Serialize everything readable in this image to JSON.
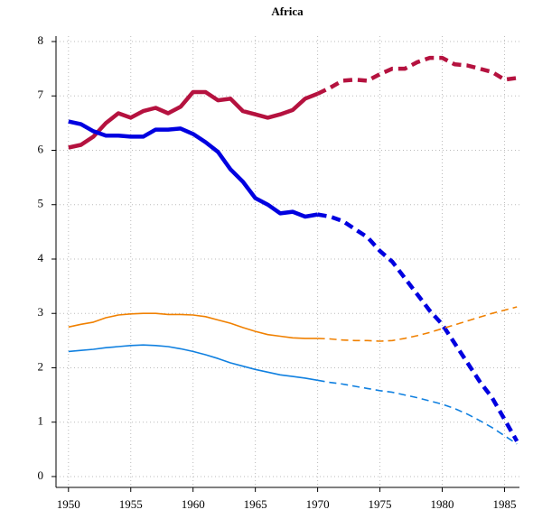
{
  "chart_data": {
    "type": "line",
    "title": "Africa",
    "x": [
      1950,
      1951,
      1952,
      1953,
      1954,
      1955,
      1956,
      1957,
      1958,
      1959,
      1960,
      1961,
      1962,
      1963,
      1964,
      1965,
      1966,
      1967,
      1968,
      1969,
      1970,
      1971,
      1972,
      1973,
      1974,
      1975,
      1976,
      1977,
      1978,
      1979,
      1980,
      1981,
      1982,
      1983,
      1984,
      1985,
      1986
    ],
    "dashed_from": 1970,
    "series": [
      {
        "color": "#b5123f",
        "width": 4.5,
        "values": [
          6.05,
          6.1,
          6.25,
          6.5,
          6.68,
          6.6,
          6.72,
          6.78,
          6.68,
          6.8,
          7.07,
          7.07,
          6.92,
          6.95,
          6.72,
          6.66,
          6.6,
          6.66,
          6.74,
          6.95,
          7.04,
          7.15,
          7.28,
          7.3,
          7.28,
          7.4,
          7.5,
          7.5,
          7.62,
          7.7,
          7.7,
          7.58,
          7.56,
          7.5,
          7.44,
          7.3,
          7.33
        ]
      },
      {
        "color": "#0000e0",
        "width": 4.5,
        "values": [
          6.53,
          6.48,
          6.35,
          6.27,
          6.27,
          6.25,
          6.25,
          6.38,
          6.38,
          6.4,
          6.3,
          6.15,
          5.97,
          5.65,
          5.42,
          5.12,
          5.0,
          4.84,
          4.87,
          4.78,
          4.82,
          4.78,
          4.7,
          4.55,
          4.4,
          4.15,
          3.95,
          3.65,
          3.35,
          3.05,
          2.8,
          2.45,
          2.1,
          1.75,
          1.45,
          1.05,
          0.65
        ]
      },
      {
        "color": "#f08000",
        "width": 1.6,
        "values": [
          2.75,
          2.8,
          2.84,
          2.92,
          2.97,
          2.99,
          3.0,
          3.0,
          2.98,
          2.98,
          2.97,
          2.94,
          2.88,
          2.82,
          2.74,
          2.67,
          2.61,
          2.58,
          2.55,
          2.54,
          2.54,
          2.53,
          2.51,
          2.5,
          2.5,
          2.49,
          2.5,
          2.54,
          2.59,
          2.65,
          2.72,
          2.79,
          2.86,
          2.93,
          3.0,
          3.06,
          3.12
        ]
      },
      {
        "color": "#1080e0",
        "width": 1.6,
        "values": [
          2.3,
          2.32,
          2.34,
          2.37,
          2.39,
          2.41,
          2.42,
          2.41,
          2.39,
          2.35,
          2.3,
          2.24,
          2.17,
          2.09,
          2.03,
          1.97,
          1.92,
          1.87,
          1.84,
          1.81,
          1.77,
          1.73,
          1.7,
          1.66,
          1.62,
          1.58,
          1.55,
          1.5,
          1.45,
          1.39,
          1.33,
          1.25,
          1.15,
          1.03,
          0.9,
          0.75,
          0.6
        ]
      }
    ],
    "xlim": [
      1949,
      1986.2
    ],
    "ylim": [
      -0.2,
      8.1
    ],
    "xticks": [
      1950,
      1955,
      1960,
      1965,
      1970,
      1975,
      1980,
      1985
    ],
    "yticks": [
      0,
      1,
      2,
      3,
      4,
      5,
      6,
      7,
      8
    ],
    "grid": true
  }
}
